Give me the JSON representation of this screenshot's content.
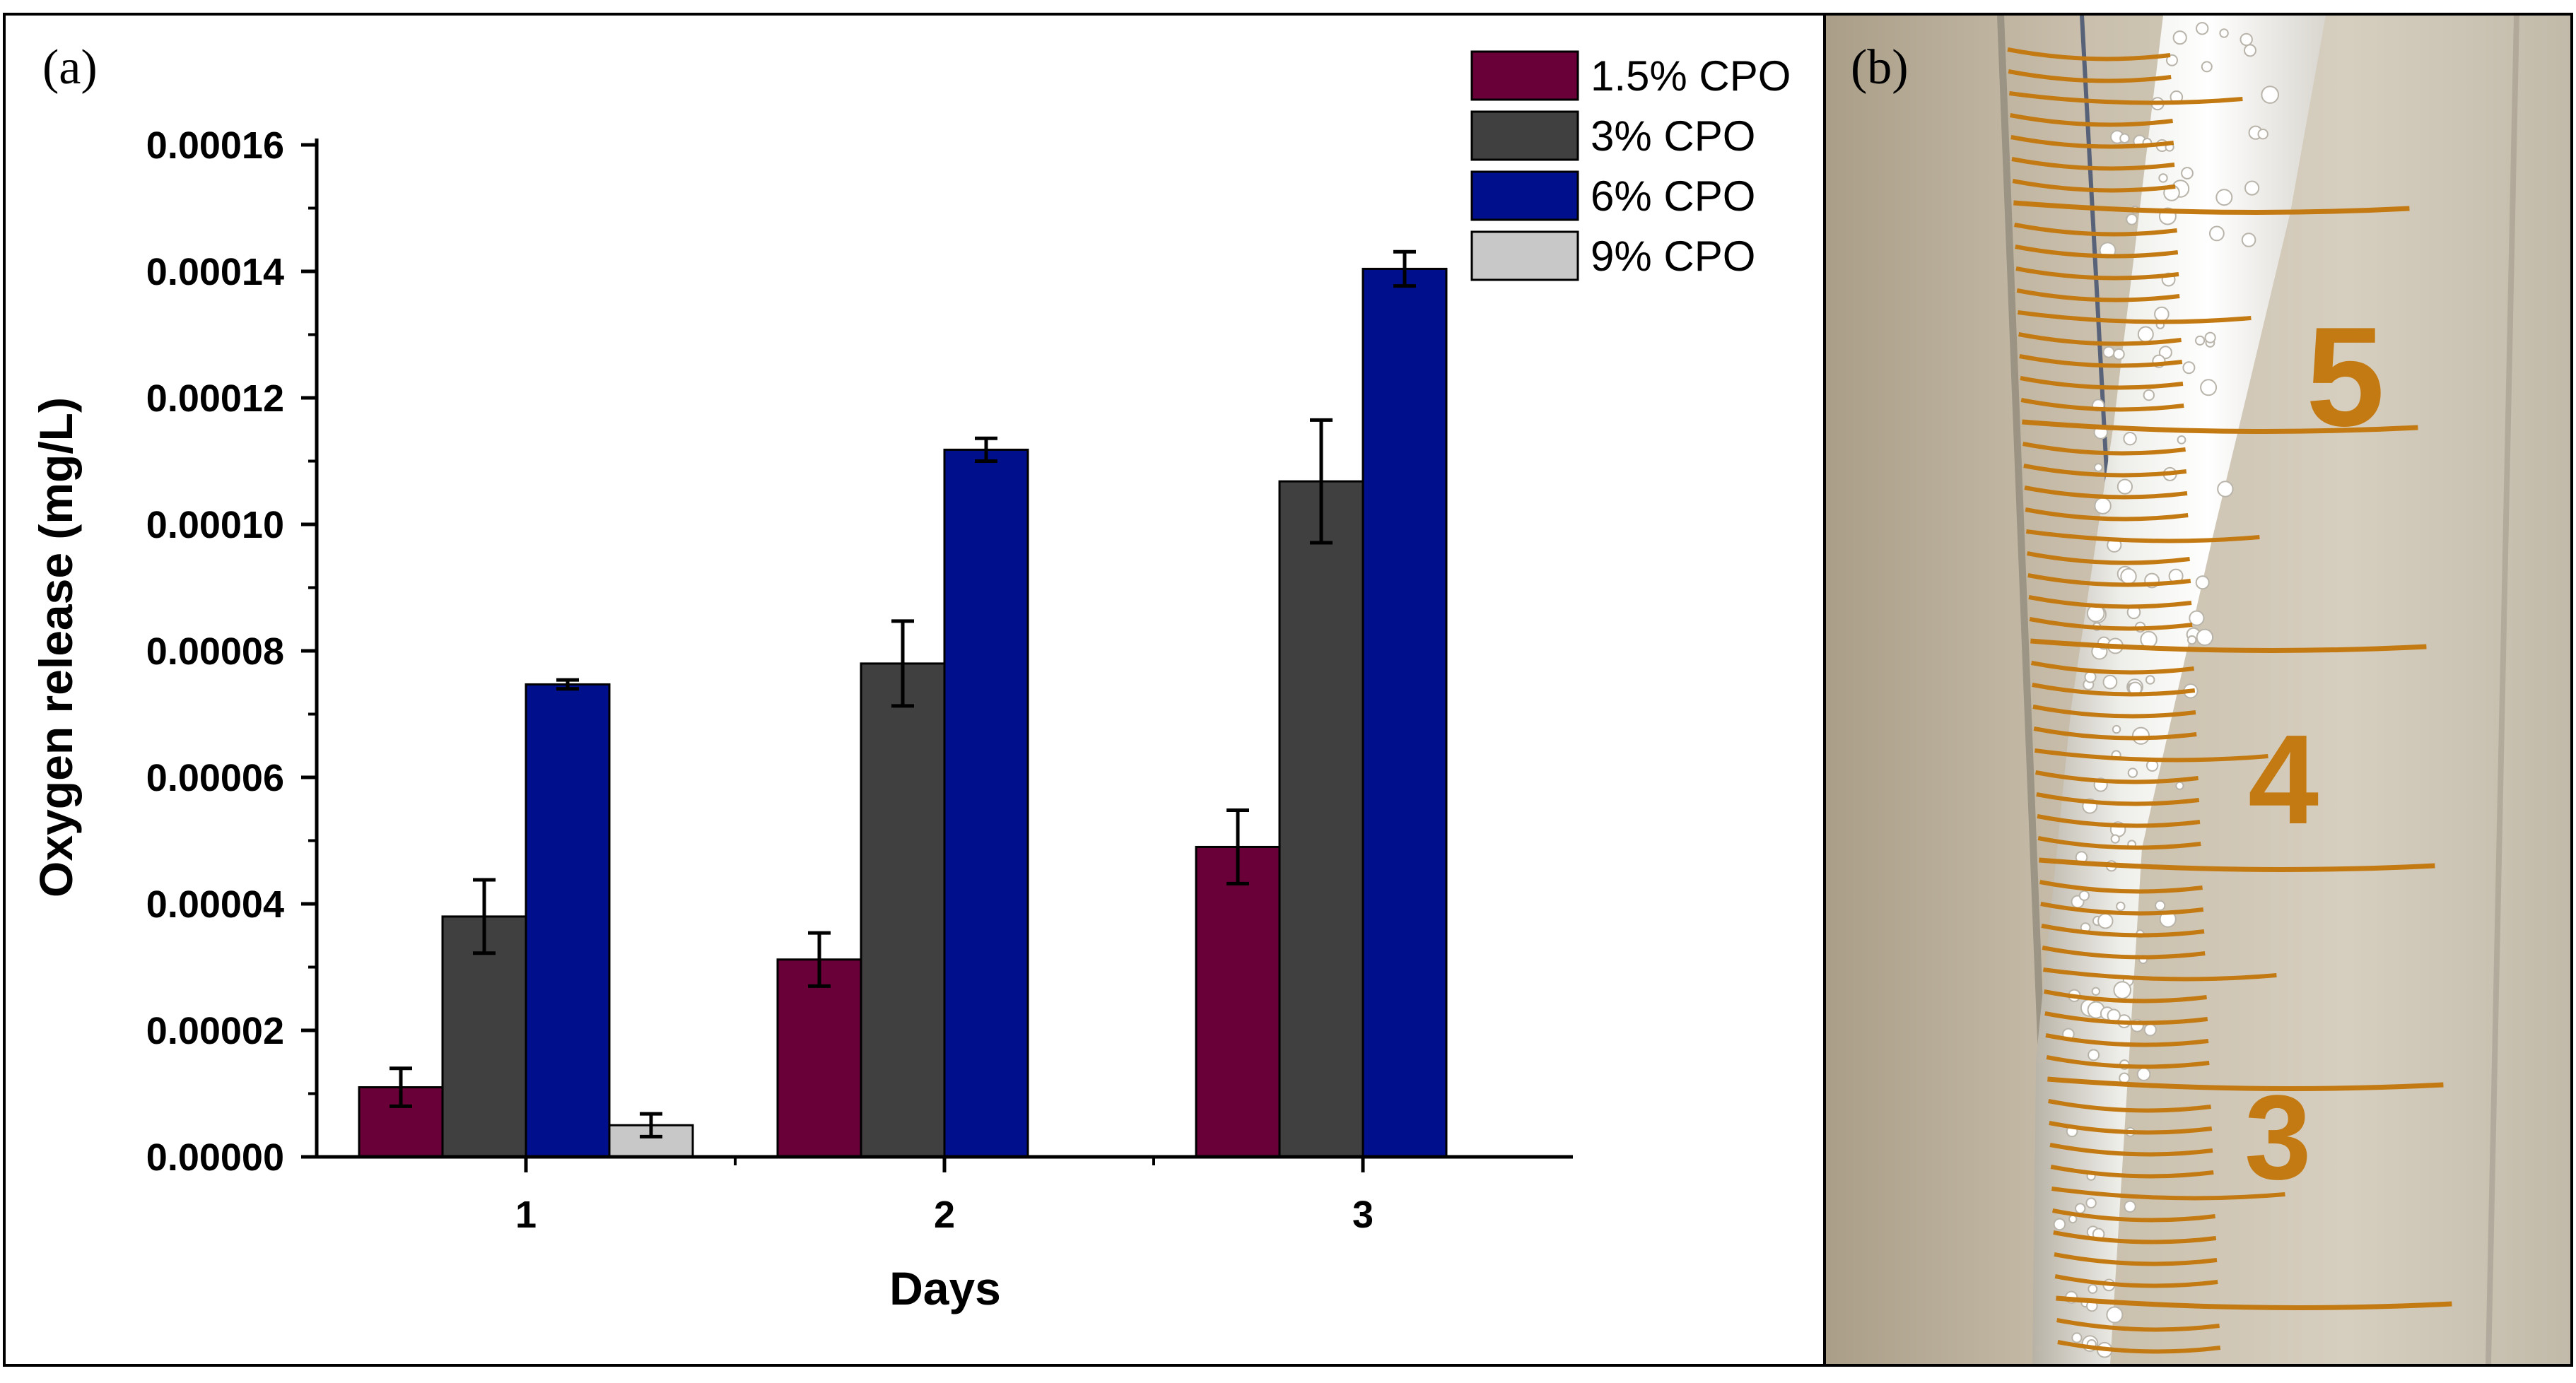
{
  "panel_a_label": "(a)",
  "panel_b_label": "(b)",
  "chart_data": {
    "type": "bar",
    "title": "",
    "xlabel": "Days",
    "ylabel": "Oxygen release (mg/L)",
    "categories": [
      "1",
      "2",
      "3"
    ],
    "ylim": [
      0,
      0.00016
    ],
    "yticks": [
      "0.00000",
      "0.00002",
      "0.00004",
      "0.00006",
      "0.00008",
      "0.00010",
      "0.00012",
      "0.00014",
      "0.00016"
    ],
    "legend_position": "top-right",
    "series": [
      {
        "name": "1.5% CPO",
        "color": "#6a0038",
        "values": [
          1.1e-05,
          3.12e-05,
          4.9e-05
        ],
        "errors": [
          3e-06,
          4.2e-06,
          5.8e-06
        ]
      },
      {
        "name": "3% CPO",
        "color": "#404040",
        "values": [
          3.8e-05,
          7.8e-05,
          0.0001068
        ],
        "errors": [
          5.8e-06,
          6.7e-06,
          9.7e-06
        ]
      },
      {
        "name": "6% CPO",
        "color": "#000f8c",
        "values": [
          7.47e-05,
          0.0001118,
          0.0001404
        ],
        "errors": [
          7e-07,
          1.8e-06,
          2.7e-06
        ]
      },
      {
        "name": "9% CPO",
        "color": "#c8c8c8",
        "values": [
          5e-06,
          null,
          null
        ],
        "errors": [
          1.8e-06,
          null,
          null
        ]
      }
    ]
  },
  "photo": {
    "scale_numbers": [
      "5",
      "4",
      "3"
    ],
    "graduation_color": "#c47a12"
  }
}
